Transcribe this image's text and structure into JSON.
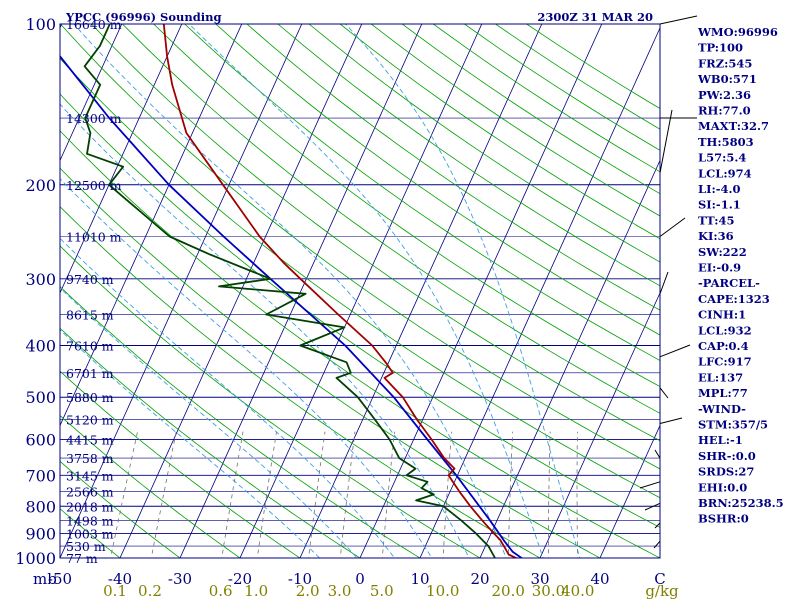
{
  "header": {
    "station": "YPCC (96996) Sounding",
    "datetime": "2300Z 31 MAR 20"
  },
  "chart_data": {
    "type": "skew-t",
    "title": "YPCC (96996) Sounding",
    "y_unit": "mb",
    "x_unit_mixing_ratio": "g/kg",
    "pressure_range": [
      100,
      1000
    ],
    "temperature_range": [
      -50,
      50
    ],
    "pressure_ticks": [
      100,
      200,
      300,
      400,
      500,
      600,
      700,
      800,
      900,
      1000
    ],
    "temperature_ticks": [
      "-50",
      "-40",
      "-30",
      "-20",
      "-10",
      "0",
      "10",
      "20",
      "30",
      "40",
      "C"
    ],
    "mixing_ratio_ticks": [
      "0.1",
      "0.2",
      "0.6",
      "1.0",
      "2.0",
      "3.0",
      "5.0",
      "10.0",
      "20.0",
      "30.0",
      "40.0",
      "g/kg"
    ],
    "mixing_ratio_values": [
      0.1,
      0.2,
      0.6,
      1.0,
      2.0,
      3.0,
      5.0,
      10.0,
      20.0,
      30.0,
      40.0
    ],
    "height_labels": [
      {
        "p": 100,
        "label": "16640 m"
      },
      {
        "p": 150,
        "label": "14300 m"
      },
      {
        "p": 200,
        "label": "12500 m"
      },
      {
        "p": 250,
        "label": "11010 m"
      },
      {
        "p": 300,
        "label": "9740 m"
      },
      {
        "p": 350,
        "label": "8615 m"
      },
      {
        "p": 400,
        "label": "7610 m"
      },
      {
        "p": 450,
        "label": "6701 m"
      },
      {
        "p": 500,
        "label": "5880 m"
      },
      {
        "p": 550,
        "label": "5120 m"
      },
      {
        "p": 600,
        "label": "4415 m"
      },
      {
        "p": 650,
        "label": "3758 m"
      },
      {
        "p": 700,
        "label": "3145 m"
      },
      {
        "p": 750,
        "label": "2566 m"
      },
      {
        "p": 800,
        "label": "2018 m"
      },
      {
        "p": 850,
        "label": "1498 m"
      },
      {
        "p": 900,
        "label": "1003 m"
      },
      {
        "p": 950,
        "label": "530 m"
      },
      {
        "p": 1000,
        "label": "77 m"
      }
    ],
    "temperature_profile": [
      {
        "p": 1008,
        "t": 27.5
      },
      {
        "p": 1000,
        "t": 26.0
      },
      {
        "p": 985,
        "t": 24.5
      },
      {
        "p": 960,
        "t": 23.5
      },
      {
        "p": 925,
        "t": 22.0
      },
      {
        "p": 900,
        "t": 20.5
      },
      {
        "p": 850,
        "t": 17.5
      },
      {
        "p": 800,
        "t": 14.5
      },
      {
        "p": 750,
        "t": 11.5
      },
      {
        "p": 700,
        "t": 8.5
      },
      {
        "p": 680,
        "t": 9.0
      },
      {
        "p": 650,
        "t": 6.5
      },
      {
        "p": 600,
        "t": 3.0
      },
      {
        "p": 550,
        "t": -1.0
      },
      {
        "p": 500,
        "t": -5.0
      },
      {
        "p": 460,
        "t": -9.5
      },
      {
        "p": 450,
        "t": -8.5
      },
      {
        "p": 430,
        "t": -10.5
      },
      {
        "p": 400,
        "t": -14.0
      },
      {
        "p": 350,
        "t": -22.0
      },
      {
        "p": 300,
        "t": -31.0
      },
      {
        "p": 280,
        "t": -35.0
      },
      {
        "p": 250,
        "t": -41.0
      },
      {
        "p": 200,
        "t": -51.0
      },
      {
        "p": 160,
        "t": -61.0
      },
      {
        "p": 130,
        "t": -67.0
      },
      {
        "p": 115,
        "t": -70.0
      },
      {
        "p": 100,
        "t": -73.0
      }
    ],
    "dewpoint_profile": [
      {
        "p": 1000,
        "t": 22.5
      },
      {
        "p": 950,
        "t": 20.5
      },
      {
        "p": 900,
        "t": 17.5
      },
      {
        "p": 850,
        "t": 14.0
      },
      {
        "p": 800,
        "t": 10.0
      },
      {
        "p": 780,
        "t": 5.0
      },
      {
        "p": 760,
        "t": 7.5
      },
      {
        "p": 740,
        "t": 5.0
      },
      {
        "p": 720,
        "t": 5.5
      },
      {
        "p": 700,
        "t": 1.5
      },
      {
        "p": 680,
        "t": 2.5
      },
      {
        "p": 650,
        "t": -1.0
      },
      {
        "p": 600,
        "t": -4.0
      },
      {
        "p": 550,
        "t": -8.0
      },
      {
        "p": 500,
        "t": -12.5
      },
      {
        "p": 460,
        "t": -17.5
      },
      {
        "p": 450,
        "t": -15.5
      },
      {
        "p": 430,
        "t": -17.0
      },
      {
        "p": 400,
        "t": -26.0
      },
      {
        "p": 370,
        "t": -20.0
      },
      {
        "p": 350,
        "t": -34.0
      },
      {
        "p": 320,
        "t": -29.0
      },
      {
        "p": 310,
        "t": -44.0
      },
      {
        "p": 300,
        "t": -36.0
      },
      {
        "p": 270,
        "t": -48.0
      },
      {
        "p": 250,
        "t": -56.0
      },
      {
        "p": 200,
        "t": -70.0
      },
      {
        "p": 185,
        "t": -69.0
      },
      {
        "p": 175,
        "t": -76.0
      },
      {
        "p": 160,
        "t": -77.0
      },
      {
        "p": 150,
        "t": -79.0
      },
      {
        "p": 130,
        "t": -79.0
      },
      {
        "p": 120,
        "t": -83.0
      },
      {
        "p": 110,
        "t": -82.0
      },
      {
        "p": 100,
        "t": -82.0
      }
    ],
    "parcel_profile": [
      {
        "p": 1008,
        "t": 27.5
      },
      {
        "p": 974,
        "t": 25.0
      },
      {
        "p": 930,
        "t": 22.8
      },
      {
        "p": 850,
        "t": 18.8
      },
      {
        "p": 700,
        "t": 9.8
      },
      {
        "p": 600,
        "t": 2.3
      },
      {
        "p": 500,
        "t": -6.5
      },
      {
        "p": 400,
        "t": -18.5
      },
      {
        "p": 300,
        "t": -36.0
      },
      {
        "p": 250,
        "t": -47.0
      },
      {
        "p": 200,
        "t": -60.0
      },
      {
        "p": 150,
        "t": -75.0
      },
      {
        "p": 110,
        "t": -90.0
      }
    ]
  },
  "indices": [
    "WMO:96996",
    "TP:100",
    "FRZ:545",
    "WB0:571",
    "PW:2.36",
    "RH:77.0",
    "MAXT:32.7",
    "TH:5803",
    "L57:5.4",
    "LCL:974",
    "LI:-4.0",
    "SI:-1.1",
    "TT:45",
    "KI:36",
    "SW:222",
    "EI:-0.9",
    "-PARCEL-",
    "CAPE:1323",
    "CINH:1",
    "LCL:932",
    "CAP:0.4",
    "LFC:917",
    "EL:137",
    "MPL:77",
    "-WIND-",
    "STM:357/5",
    "HEL:-1",
    "SHR-:0.0",
    "SRDS:27",
    "EHI:0.0",
    "BRN:25238.5",
    "BSHR:0"
  ],
  "colors": {
    "navy": "#000080",
    "isotherm": "#000080",
    "dry_adiabat": "#00A000",
    "moist_adiabat": "#40A0E0",
    "mixing_ratio": "#707070",
    "temperature": "#A00000",
    "dewpoint": "#004000",
    "parcel": "#0000C0",
    "mixing_label": "#808000"
  }
}
